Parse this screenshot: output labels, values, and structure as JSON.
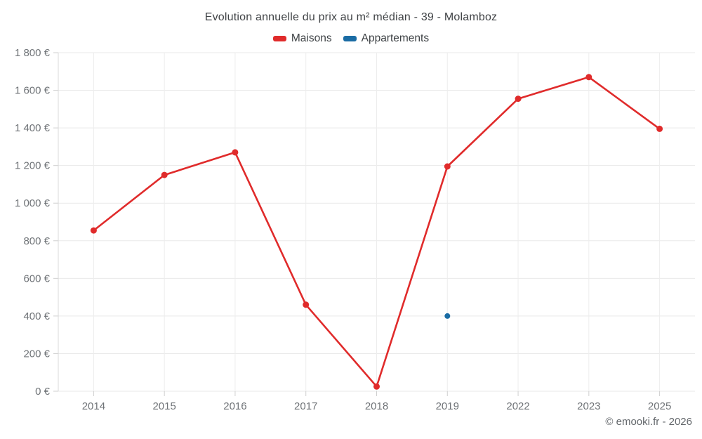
{
  "page": {
    "footer": "© emooki.fr - 2026"
  },
  "chart_data": {
    "type": "line",
    "title": "Evolution annuelle du prix au m² médian - 39 - Molamboz",
    "categories": [
      "2014",
      "2015",
      "2016",
      "2017",
      "2018",
      "2019",
      "2022",
      "2023",
      "2025"
    ],
    "series": [
      {
        "name": "Maisons",
        "color": "#e02b2b",
        "marker_radius": 4.5,
        "values": [
          855,
          1150,
          1270,
          460,
          25,
          1195,
          1555,
          1670,
          1395
        ]
      },
      {
        "name": "Appartements",
        "color": "#1a6ca4",
        "marker_radius": 4,
        "values": [
          null,
          null,
          null,
          null,
          null,
          400,
          null,
          null,
          null
        ]
      }
    ],
    "y_ticks": [
      "0 €",
      "200 €",
      "400 €",
      "600 €",
      "800 €",
      "1 000 €",
      "1 200 €",
      "1 400 €",
      "1 600 €",
      "1 800 €"
    ],
    "ylim": [
      0,
      1800
    ],
    "xlabel": "",
    "ylabel": "",
    "grid": true,
    "legend_position": "top",
    "axis_text_color": "#6f7377",
    "grid_color": "#e9e9e9",
    "vgrid_color": "#ededed",
    "axis_line_color": "#d9d9d9",
    "tick_color": "#cfcfcf"
  }
}
